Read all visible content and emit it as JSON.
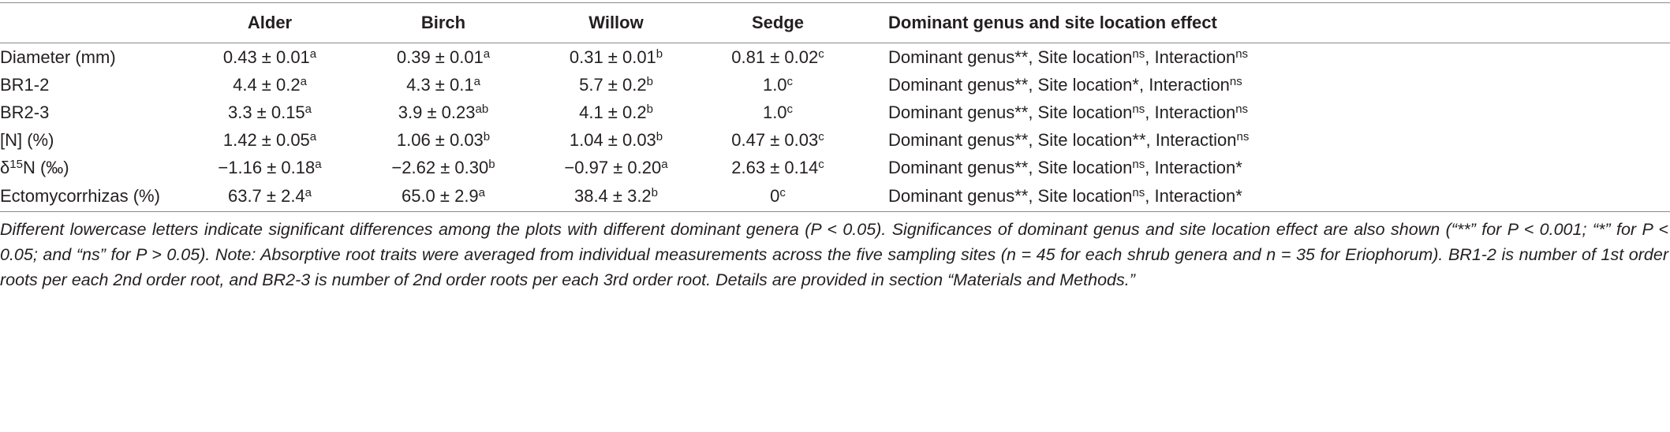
{
  "table": {
    "column_headers": [
      "Alder",
      "Birch",
      "Willow",
      "Sedge",
      "Dominant genus and site location effect"
    ],
    "rows": [
      {
        "label": [
          {
            "text": "Diameter (mm)"
          }
        ],
        "cells": [
          [
            {
              "text": "0.43 ± 0.01"
            },
            {
              "sup": "a"
            }
          ],
          [
            {
              "text": "0.39 ± 0.01"
            },
            {
              "sup": "a"
            }
          ],
          [
            {
              "text": "0.31 ± 0.01"
            },
            {
              "sup": "b"
            }
          ],
          [
            {
              "text": "0.81 ± 0.02"
            },
            {
              "sup": "c"
            }
          ]
        ],
        "effect": [
          {
            "text": "Dominant genus**, Site location"
          },
          {
            "sup": "ns"
          },
          {
            "text": ", Interaction"
          },
          {
            "sup": "ns"
          }
        ]
      },
      {
        "label": [
          {
            "text": "BR1-2"
          }
        ],
        "cells": [
          [
            {
              "text": "4.4 ± 0.2"
            },
            {
              "sup": "a"
            }
          ],
          [
            {
              "text": "4.3 ± 0.1"
            },
            {
              "sup": "a"
            }
          ],
          [
            {
              "text": "5.7 ± 0.2"
            },
            {
              "sup": "b"
            }
          ],
          [
            {
              "text": "1.0"
            },
            {
              "sup": "c"
            }
          ]
        ],
        "effect": [
          {
            "text": "Dominant genus**, Site location*, Interaction"
          },
          {
            "sup": "ns"
          }
        ]
      },
      {
        "label": [
          {
            "text": "BR2-3"
          }
        ],
        "cells": [
          [
            {
              "text": "3.3 ± 0.15"
            },
            {
              "sup": "a"
            }
          ],
          [
            {
              "text": "3.9 ± 0.23"
            },
            {
              "sup": "ab"
            }
          ],
          [
            {
              "text": "4.1 ± 0.2"
            },
            {
              "sup": "b"
            }
          ],
          [
            {
              "text": "1.0"
            },
            {
              "sup": "c"
            }
          ]
        ],
        "effect": [
          {
            "text": "Dominant genus**, Site location"
          },
          {
            "sup": "ns"
          },
          {
            "text": ", Interaction"
          },
          {
            "sup": "ns"
          }
        ]
      },
      {
        "label": [
          {
            "text": "[N] (%)"
          }
        ],
        "cells": [
          [
            {
              "text": "1.42 ± 0.05"
            },
            {
              "sup": "a"
            }
          ],
          [
            {
              "text": "1.06 ± 0.03"
            },
            {
              "sup": "b"
            }
          ],
          [
            {
              "text": "1.04 ± 0.03"
            },
            {
              "sup": "b"
            }
          ],
          [
            {
              "text": "0.47 ± 0.03"
            },
            {
              "sup": "c"
            }
          ]
        ],
        "effect": [
          {
            "text": "Dominant genus**, Site location**, Interaction"
          },
          {
            "sup": "ns"
          }
        ]
      },
      {
        "label": [
          {
            "text": "δ"
          },
          {
            "sup": "15"
          },
          {
            "text": "N (‰)"
          }
        ],
        "cells": [
          [
            {
              "text": "−1.16 ± 0.18"
            },
            {
              "sup": "a"
            }
          ],
          [
            {
              "text": "−2.62 ± 0.30"
            },
            {
              "sup": "b"
            }
          ],
          [
            {
              "text": "−0.97 ± 0.20"
            },
            {
              "sup": "a"
            }
          ],
          [
            {
              "text": "2.63 ± 0.14"
            },
            {
              "sup": "c"
            }
          ]
        ],
        "effect": [
          {
            "text": "Dominant genus**, Site location"
          },
          {
            "sup": "ns"
          },
          {
            "text": ", Interaction*"
          }
        ]
      },
      {
        "label": [
          {
            "text": "Ectomycorrhizas (%)"
          }
        ],
        "cells": [
          [
            {
              "text": "63.7 ± 2.4"
            },
            {
              "sup": "a"
            }
          ],
          [
            {
              "text": "65.0 ± 2.9"
            },
            {
              "sup": "a"
            }
          ],
          [
            {
              "text": "38.4 ± 3.2"
            },
            {
              "sup": "b"
            }
          ],
          [
            {
              "text": "0"
            },
            {
              "sup": "c"
            }
          ]
        ],
        "effect": [
          {
            "text": "Dominant genus**, Site location"
          },
          {
            "sup": "ns"
          },
          {
            "text": ", Interaction*"
          }
        ]
      }
    ],
    "note": "Different lowercase letters indicate significant differences among the plots with different dominant genera (P < 0.05). Significances of dominant genus and site location effect are also shown (“**” for P < 0.001; “*” for P < 0.05; and “ns” for P > 0.05). Note: Absorptive root traits were averaged from individual measurements across the five sampling sites (n = 45 for each shrub genera and n = 35 for Eriophorum). BR1-2 is number of 1st order roots per each 2nd order root, and BR2-3 is number of 2nd order roots per each 3rd order root. Details are provided in section “Materials and Methods.”"
  }
}
